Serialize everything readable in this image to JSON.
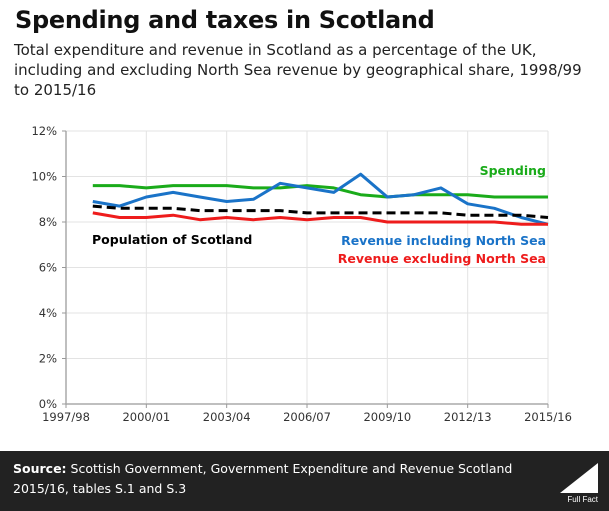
{
  "header": {
    "title": "Spending and taxes in Scotland",
    "subtitle": "Total expenditure and revenue in Scotland as a percentage of the UK, including and excluding North Sea revenue by geographical share, 1998/99 to 2015/16"
  },
  "footer": {
    "source_label": "Source:",
    "source_text": "Scottish Government, Government Expenditure and Revenue Scotland 2015/16, tables S.1 and S.3",
    "logo_text": "Full Fact"
  },
  "chart_data": {
    "type": "line",
    "title": "Spending and taxes in Scotland",
    "xlabel": "",
    "ylabel": "",
    "ylim": [
      0,
      12
    ],
    "y_ticks": [
      "0%",
      "2%",
      "4%",
      "6%",
      "8%",
      "10%",
      "12%"
    ],
    "y_tick_values": [
      0,
      2,
      4,
      6,
      8,
      10,
      12
    ],
    "x_tick_labels": [
      "1997/98",
      "2000/01",
      "2003/04",
      "2006/07",
      "2009/10",
      "2012/13",
      "2015/16"
    ],
    "grid": true,
    "x": [
      "1998/99",
      "1999/00",
      "2000/01",
      "2001/02",
      "2002/03",
      "2003/04",
      "2004/05",
      "2005/06",
      "2006/07",
      "2007/08",
      "2008/09",
      "2009/10",
      "2010/11",
      "2011/12",
      "2012/13",
      "2013/14",
      "2014/15",
      "2015/16"
    ],
    "series": [
      {
        "name": "Spending",
        "color": "#1aab1a",
        "style": "solid",
        "values": [
          9.6,
          9.6,
          9.5,
          9.6,
          9.6,
          9.6,
          9.5,
          9.5,
          9.6,
          9.5,
          9.2,
          9.1,
          9.2,
          9.2,
          9.2,
          9.1,
          9.1,
          9.1
        ]
      },
      {
        "name": "Revenue including North Sea",
        "color": "#1a73c8",
        "style": "solid",
        "values": [
          8.9,
          8.7,
          9.1,
          9.3,
          9.1,
          8.9,
          9.0,
          9.7,
          9.5,
          9.3,
          10.1,
          9.1,
          9.2,
          9.5,
          8.8,
          8.6,
          8.2,
          7.9
        ]
      },
      {
        "name": "Population of Scotland",
        "color": "#000000",
        "style": "dashed",
        "values": [
          8.7,
          8.6,
          8.6,
          8.6,
          8.5,
          8.5,
          8.5,
          8.5,
          8.4,
          8.4,
          8.4,
          8.4,
          8.4,
          8.4,
          8.3,
          8.3,
          8.3,
          8.2
        ]
      },
      {
        "name": "Revenue excluding North Sea",
        "color": "#ee1c1c",
        "style": "solid",
        "values": [
          8.4,
          8.2,
          8.2,
          8.3,
          8.1,
          8.2,
          8.1,
          8.2,
          8.1,
          8.2,
          8.2,
          8.0,
          8.0,
          8.0,
          8.0,
          8.0,
          7.9,
          7.9
        ]
      }
    ],
    "annotations": [
      {
        "text": "Spending",
        "color": "#1aab1a"
      },
      {
        "text": "Population of Scotland",
        "color": "#000000"
      },
      {
        "text": "Revenue including North Sea",
        "color": "#1a73c8"
      },
      {
        "text": "Revenue excluding North Sea",
        "color": "#ee1c1c"
      }
    ]
  }
}
